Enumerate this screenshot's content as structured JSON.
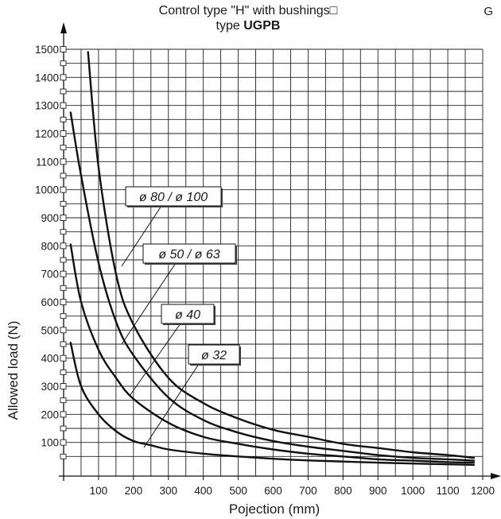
{
  "header": {
    "title_line1": "Control type \"H\" with bushings□",
    "title_line2_prefix": "type ",
    "title_line2_bold": "UGPB",
    "corner_letter": "G"
  },
  "chart_data": {
    "type": "line",
    "title": "Control type \"H\" with bushings type UGPB",
    "xlabel": "Pojection (mm)",
    "ylabel": "Allowed load (N)",
    "xlim": [
      0,
      1200
    ],
    "ylim": [
      0,
      1500
    ],
    "x_ticks": [
      100,
      200,
      300,
      400,
      500,
      600,
      700,
      800,
      900,
      1000,
      1100,
      1200
    ],
    "y_ticks": [
      100,
      200,
      300,
      400,
      500,
      600,
      700,
      800,
      900,
      1000,
      1100,
      1200,
      1300,
      1400,
      1500
    ],
    "grid": true,
    "series": [
      {
        "name": "ø 80 / ø 100",
        "x": [
          70,
          100,
          150,
          200,
          300,
          400,
          500,
          600,
          700,
          800,
          900,
          1000,
          1100,
          1175
        ],
        "y": [
          1490,
          1080,
          700,
          520,
          330,
          240,
          185,
          145,
          120,
          95,
          80,
          65,
          55,
          45
        ]
      },
      {
        "name": "ø 50 / ø 63",
        "x": [
          20,
          50,
          100,
          150,
          200,
          300,
          400,
          500,
          600,
          700,
          800,
          900,
          1000,
          1100,
          1175
        ],
        "y": [
          1275,
          1050,
          740,
          530,
          410,
          260,
          180,
          135,
          105,
          85,
          70,
          55,
          45,
          40,
          35
        ]
      },
      {
        "name": "ø 40",
        "x": [
          20,
          50,
          100,
          150,
          200,
          300,
          400,
          500,
          600,
          700,
          800,
          900,
          1000,
          1100,
          1175
        ],
        "y": [
          805,
          600,
          430,
          330,
          255,
          170,
          120,
          95,
          75,
          60,
          50,
          40,
          35,
          30,
          28
        ]
      },
      {
        "name": "ø 32",
        "x": [
          20,
          50,
          100,
          150,
          200,
          250,
          300,
          400,
          500,
          600,
          700,
          800,
          900,
          1000,
          1100,
          1175
        ],
        "y": [
          455,
          300,
          200,
          140,
          105,
          90,
          75,
          60,
          50,
          42,
          36,
          32,
          28,
          25,
          22,
          20
        ]
      }
    ]
  }
}
